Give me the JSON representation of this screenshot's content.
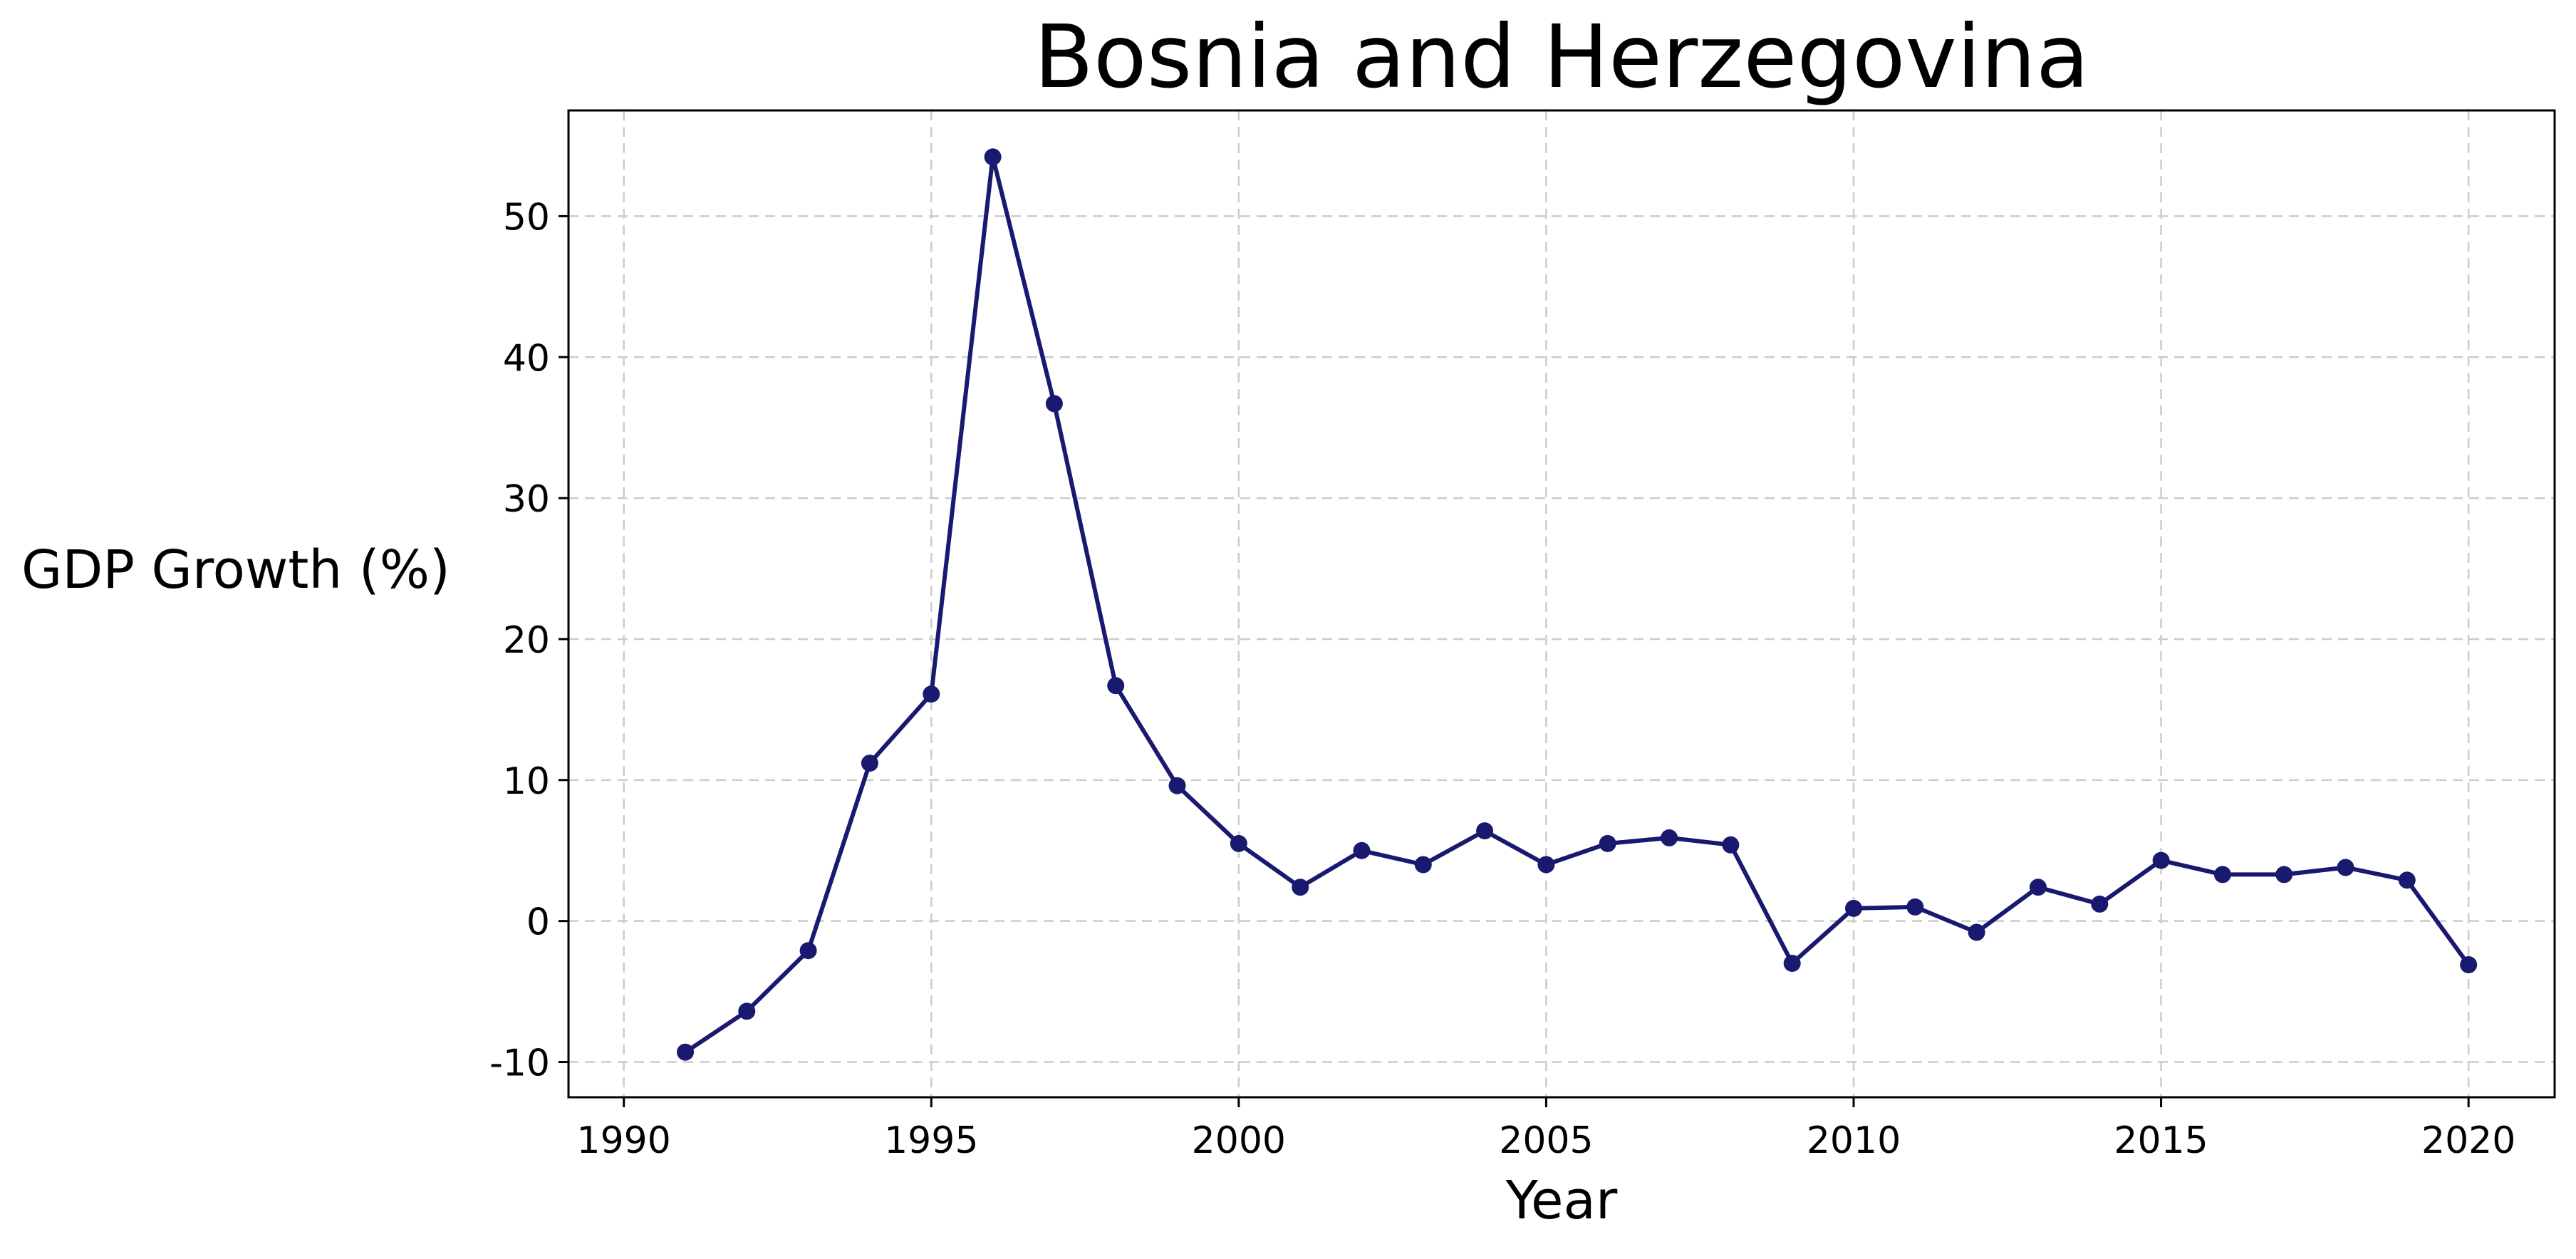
{
  "chart_data": {
    "type": "line",
    "title": "Bosnia and Herzegovina",
    "xlabel": "Year",
    "ylabel": "GDP Growth (%)",
    "xlim": [
      1989.1,
      2021.4
    ],
    "ylim": [
      -12.5,
      57.5
    ],
    "x_ticks": [
      1990,
      1995,
      2000,
      2005,
      2010,
      2015,
      2020
    ],
    "x_tick_labels": [
      "1990",
      "1995",
      "2000",
      "2005",
      "2010",
      "2015",
      "2020"
    ],
    "y_ticks": [
      -10,
      0,
      10,
      20,
      30,
      40,
      50
    ],
    "y_tick_labels": [
      "-10",
      "0",
      "10",
      "20",
      "30",
      "40",
      "50"
    ],
    "grid": true,
    "series": [
      {
        "color": "#191970",
        "marker": "circle",
        "x": [
          1991,
          1992,
          1993,
          1994,
          1995,
          1996,
          1997,
          1998,
          1999,
          2000,
          2001,
          2002,
          2003,
          2004,
          2005,
          2006,
          2007,
          2008,
          2009,
          2010,
          2011,
          2012,
          2013,
          2014,
          2015,
          2016,
          2017,
          2018,
          2019,
          2020
        ],
        "y": [
          -9.3,
          -6.4,
          -2.1,
          11.2,
          16.1,
          54.2,
          36.7,
          16.7,
          9.6,
          5.5,
          2.4,
          5.0,
          4.0,
          6.4,
          4.0,
          5.5,
          5.9,
          5.4,
          -3.0,
          0.9,
          1.0,
          -0.8,
          2.4,
          1.2,
          4.3,
          3.3,
          3.3,
          3.8,
          2.9,
          -3.1
        ]
      }
    ]
  }
}
